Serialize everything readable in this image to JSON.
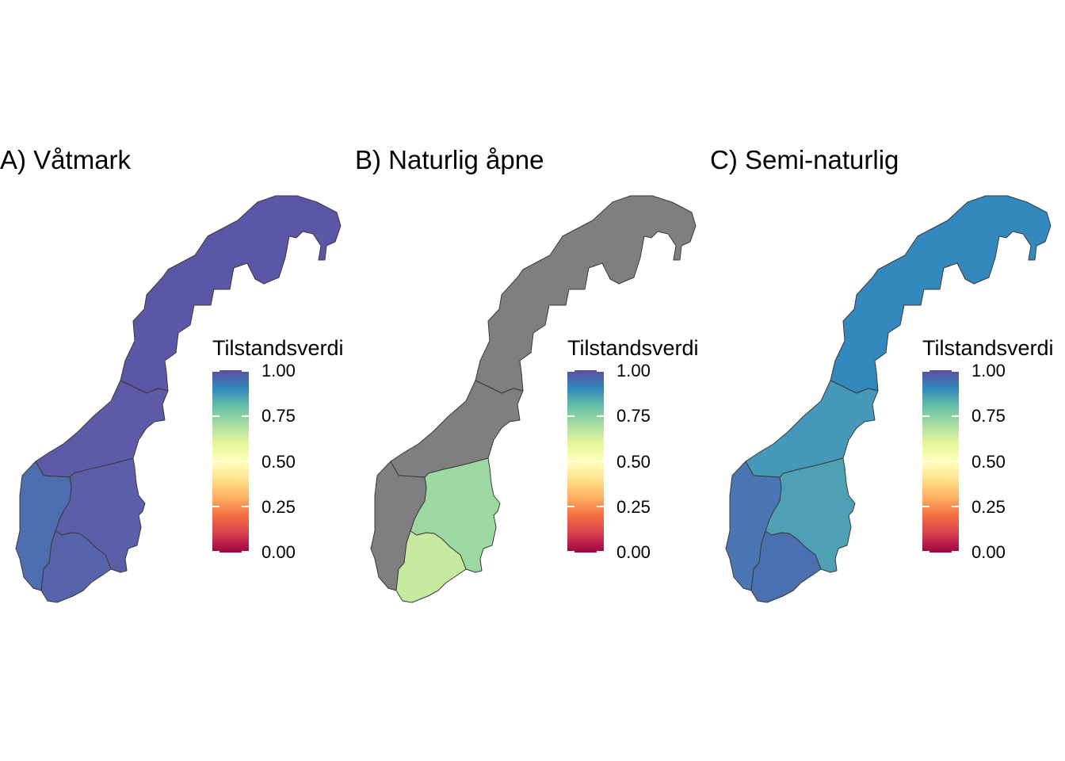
{
  "panels": [
    {
      "title": "A) Våtmark",
      "legend_title": "Tilstandsverdi",
      "regions": [
        {
          "name": "Nord-Norge",
          "value": 0.98,
          "color": "#5c56a6"
        },
        {
          "name": "Midt-Norge",
          "value": 0.97,
          "color": "#5e5aa7"
        },
        {
          "name": "Østlandet",
          "value": 0.96,
          "color": "#5a5fa8"
        },
        {
          "name": "Vestlandet",
          "value": 0.93,
          "color": "#4d6fb0"
        },
        {
          "name": "Sørlandet",
          "value": 0.95,
          "color": "#5764ab"
        }
      ]
    },
    {
      "title": "B) Naturlig åpne",
      "legend_title": "Tilstandsverdi",
      "regions": [
        {
          "name": "Nord-Norge",
          "value": null,
          "color": "#7f7f7f"
        },
        {
          "name": "Midt-Norge",
          "value": null,
          "color": "#7f7f7f"
        },
        {
          "name": "Østlandet",
          "value": 0.68,
          "color": "#9dd8a3"
        },
        {
          "name": "Vestlandet",
          "value": null,
          "color": "#7f7f7f"
        },
        {
          "name": "Sørlandet",
          "value": 0.62,
          "color": "#c6e9a0"
        }
      ]
    },
    {
      "title": "C) Semi-naturlig",
      "legend_title": "Tilstandsverdi",
      "regions": [
        {
          "name": "Nord-Norge",
          "value": 0.86,
          "color": "#3389bd"
        },
        {
          "name": "Midt-Norge",
          "value": 0.82,
          "color": "#4598b9"
        },
        {
          "name": "Østlandet",
          "value": 0.8,
          "color": "#4ea1b5"
        },
        {
          "name": "Vestlandet",
          "value": 0.91,
          "color": "#4a77b4"
        },
        {
          "name": "Sørlandet",
          "value": 0.92,
          "color": "#4b70b2"
        }
      ]
    }
  ],
  "legend": {
    "ticks": [
      "1.00",
      "0.75",
      "0.50",
      "0.25",
      "0.00"
    ],
    "tick_values": [
      1.0,
      0.75,
      0.5,
      0.25,
      0.0
    ],
    "scale": "Spectral",
    "stops": [
      "#5e4fa2",
      "#3288bd",
      "#66c2a5",
      "#abdda4",
      "#e6f598",
      "#ffffbf",
      "#fee08b",
      "#fdae61",
      "#f46d43",
      "#d53e4f",
      "#9e0142"
    ],
    "na_color": "#7f7f7f"
  }
}
